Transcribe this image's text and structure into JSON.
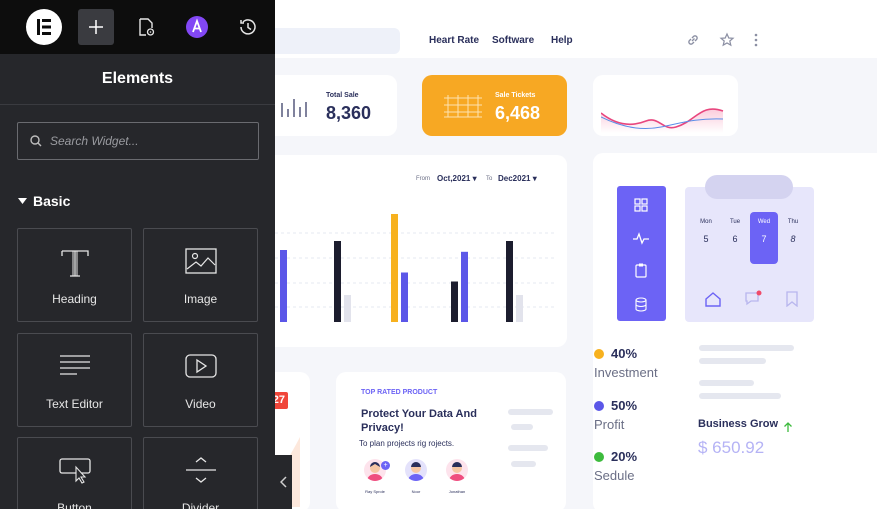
{
  "panel": {
    "title": "Elements",
    "search_placeholder": "Search Widget...",
    "section": "Basic",
    "widgets": [
      {
        "label": "Heading",
        "icon": "heading-icon"
      },
      {
        "label": "Image",
        "icon": "image-icon"
      },
      {
        "label": "Text Editor",
        "icon": "text-editor-icon"
      },
      {
        "label": "Video",
        "icon": "video-icon"
      },
      {
        "label": "Button",
        "icon": "button-icon"
      },
      {
        "label": "Divider",
        "icon": "divider-icon"
      }
    ],
    "toolbar": [
      "elementor-logo-icon",
      "add-icon",
      "page-settings-icon",
      "theme-icon",
      "history-icon"
    ]
  },
  "canvas": {
    "nav": [
      "Heart Rate",
      "Software",
      "Help"
    ],
    "stats": [
      {
        "label": "Total Sale",
        "value": "8,360"
      },
      {
        "label": "Sale Tickets",
        "value": "6,468"
      }
    ],
    "date_from_label": "From",
    "date_from": "Oct,2021",
    "date_to_label": "To",
    "date_to": "Dec2021",
    "calendar": {
      "days": [
        "Mon",
        "Tue",
        "Wed",
        "Thu"
      ],
      "dates": [
        "5",
        "6",
        "7",
        "8"
      ],
      "selected": "Wed"
    },
    "legend": [
      {
        "pct": "40%",
        "name": "Investment",
        "color": "#f7b11e"
      },
      {
        "pct": "50%",
        "name": "Profit",
        "color": "#5b57e8"
      },
      {
        "pct": "20%",
        "name": "Sedule",
        "color": "#3dbb3d"
      }
    ],
    "business": {
      "title": "Business Grow",
      "value": "$ 650.92"
    },
    "product": {
      "tag": "TOP RATED PRODUCT",
      "title": "Protect Your Data And Privacy!",
      "subtitle": "To plan projects rig rojects.",
      "people": [
        "Ray Sprole",
        "Noor",
        "Jonathan"
      ]
    },
    "badge": "27",
    "chart_data": {
      "type": "bar",
      "groups": [
        {
          "bars": [
            {
              "color": "#5b57e8",
              "value": 80
            }
          ]
        },
        {
          "bars": [
            {
              "color": "#1c1d2e",
              "value": 90
            },
            {
              "color": "#e2e3ec",
              "value": 30
            }
          ]
        },
        {
          "bars": [
            {
              "color": "#f7b11e",
              "value": 120
            },
            {
              "color": "#5b57e8",
              "value": 55
            }
          ]
        },
        {
          "bars": [
            {
              "color": "#1c1d2e",
              "value": 45
            },
            {
              "color": "#5b57e8",
              "value": 78
            }
          ]
        },
        {
          "bars": [
            {
              "color": "#1c1d2e",
              "value": 90
            },
            {
              "color": "#e2e3ec",
              "value": 30
            }
          ]
        }
      ]
    }
  }
}
